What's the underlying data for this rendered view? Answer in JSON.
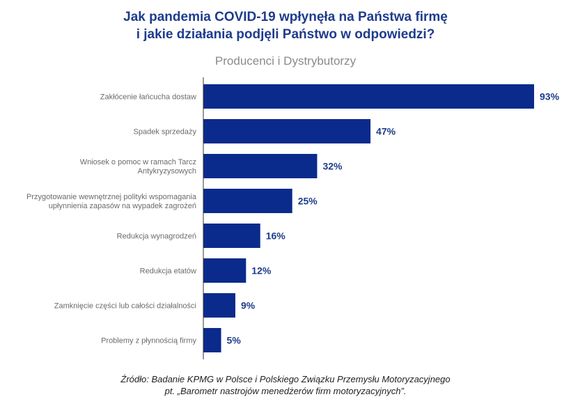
{
  "title_line1": "Jak pandemia COVID-19 wpłynęła na Państwa firmę",
  "title_line2": "i jakie działania podjęli Państwo w odpowiedzi?",
  "subtitle": "Producenci i Dystrybutorzy",
  "source_line1": "Źródło: Badanie KPMG w Polsce i Polskiego Związku Przemysłu Motoryzacyjnego",
  "source_line2": "pt. „Barometr nastrojów menedżerów firm motoryzacyjnych”.",
  "colors": {
    "bar": "#0a2a8c",
    "title": "#1e3c8c",
    "axis": "#333333"
  },
  "chart_data": {
    "type": "bar",
    "orientation": "horizontal",
    "categories": [
      [
        "Zakłócenie łańcucha dostaw"
      ],
      [
        "Spadek sprzedaży"
      ],
      [
        "Wniosek o pomoc w ramach Tarcz",
        "Antykryzysowych"
      ],
      [
        "Przygotowanie wewnętrznej polityki wspomagania",
        "upłynnienia zapasów na wypadek zagrożeń"
      ],
      [
        "Redukcja wynagrodzeń"
      ],
      [
        "Redukcja etatów"
      ],
      [
        "Zamknięcie części lub całości działalności"
      ],
      [
        "Problemy z płynnością firmy"
      ]
    ],
    "values": [
      93,
      47,
      32,
      25,
      16,
      12,
      9,
      5
    ],
    "value_labels": [
      "93%",
      "47%",
      "32%",
      "25%",
      "16%",
      "12%",
      "9%",
      "5%"
    ],
    "xlim": [
      0,
      93
    ],
    "grid": false,
    "legend": "none"
  }
}
